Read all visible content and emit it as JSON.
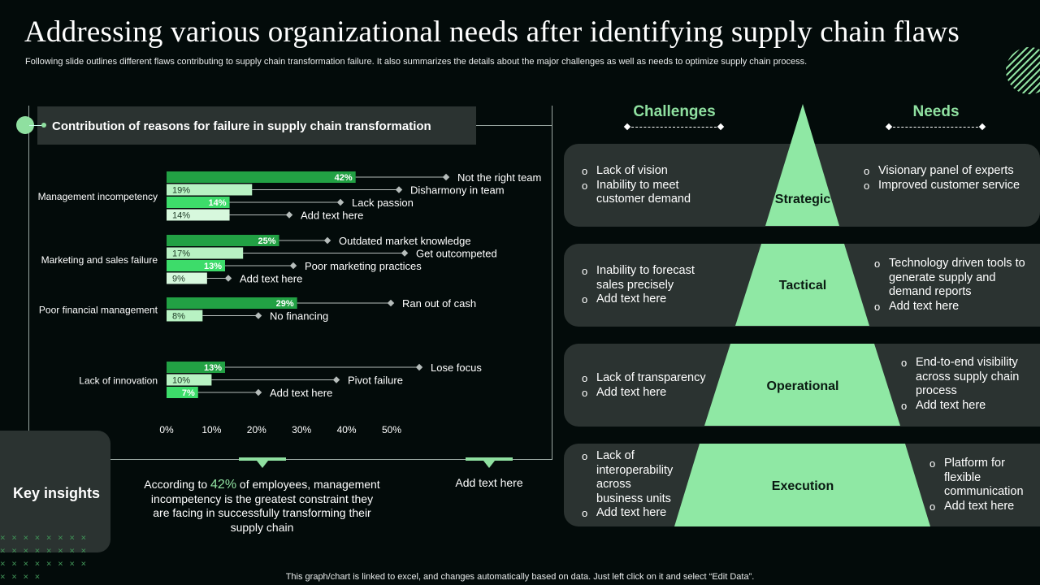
{
  "title": "Addressing various organizational needs after identifying supply chain flaws",
  "subtitle": "Following slide outlines different flaws contributing to supply chain transformation failure. It also summarizes the details about the major challenges as well as needs to optimize supply chain process.",
  "chart_header": "Contribution of reasons for failure in supply chain transformation",
  "chart_data": {
    "type": "bar",
    "orientation": "horizontal",
    "xlim": [
      0,
      50
    ],
    "x_ticks": [
      "0%",
      "10%",
      "20%",
      "30%",
      "40%",
      "50%"
    ],
    "groups": [
      {
        "name": "Management incompetency",
        "bars": [
          {
            "label": "Not the right team",
            "value": 42,
            "text": "42%"
          },
          {
            "label": "Disharmony in team",
            "value": 19,
            "text": "19%"
          },
          {
            "label": "Lack passion",
            "value": 14,
            "text": "14%"
          },
          {
            "label": "Add text here",
            "value": 14,
            "text": "14%"
          }
        ]
      },
      {
        "name": "Marketing and sales failure",
        "bars": [
          {
            "label": "Outdated market knowledge",
            "value": 25,
            "text": "25%"
          },
          {
            "label": "Get outcompeted",
            "value": 17,
            "text": "17%"
          },
          {
            "label": "Poor marketing practices",
            "value": 13,
            "text": "13%"
          },
          {
            "label": "Add text here",
            "value": 9,
            "text": "9%"
          }
        ]
      },
      {
        "name": "Poor financial management",
        "bars": [
          {
            "label": "Ran out of cash",
            "value": 29,
            "text": "29%"
          },
          {
            "label": "No financing",
            "value": 8,
            "text": "8%"
          }
        ]
      },
      {
        "name": "Lack of innovation",
        "bars": [
          {
            "label": "Lose focus",
            "value": 13,
            "text": "13%"
          },
          {
            "label": "Pivot failure",
            "value": 10,
            "text": "10%"
          },
          {
            "label": "Add text here",
            "value": 7,
            "text": "7%"
          }
        ]
      }
    ],
    "colors": [
      "#22a144",
      "#b8f2c3",
      "#3ddc6a",
      "#d7f8dd"
    ]
  },
  "key_insights": {
    "title": "Key insights",
    "text_before": "According to ",
    "highlight": "42%",
    "text_after": " of employees, management incompetency is the greatest constraint they are facing in successfully transforming their supply chain",
    "add_text": "Add text here"
  },
  "footer": "This graph/chart is linked to excel, and changes automatically based on data. Just left click on it and select “Edit Data”.",
  "challenges_head": "Challenges",
  "needs_head": "Needs",
  "levels": [
    {
      "name": "Strategic",
      "challenges": [
        "Lack of vision",
        "Inability to meet customer demand"
      ],
      "needs": [
        "Visionary panel of experts",
        "Improved customer service"
      ]
    },
    {
      "name": "Tactical",
      "challenges": [
        "Inability to forecast sales precisely",
        "Add text here"
      ],
      "needs": [
        "Technology driven tools to generate supply and demand reports",
        "Add text here"
      ]
    },
    {
      "name": "Operational",
      "challenges": [
        "Lack of transparency",
        "Add text here"
      ],
      "needs": [
        "End-to-end visibility across supply chain process",
        "Add text here"
      ]
    },
    {
      "name": "Execution",
      "challenges": [
        "Lack of interoperability across business units",
        "Add text here"
      ],
      "needs": [
        "Platform for flexible communication",
        "Add text here"
      ]
    }
  ],
  "colors": {
    "accent": "#8fe0a0",
    "panel": "#2b3331",
    "background": "#030b0a"
  }
}
